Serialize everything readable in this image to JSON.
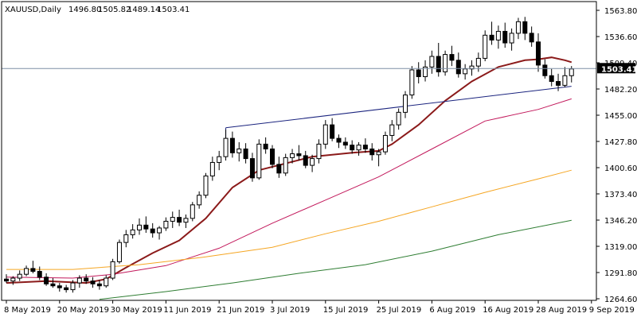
{
  "header": {
    "symbol": "XAUUSD,Daily",
    "open": "1496.80",
    "high": "1505.82",
    "low": "1489.14",
    "close": "1503.41"
  },
  "colors": {
    "background": "#ffffff",
    "axis": "#000000",
    "candle": "#000000",
    "price_line": "#7f8fa6",
    "price_label_bg": "#000000",
    "price_label_text": "#ffffff",
    "trendline": "#1a237e",
    "ma_dark_red": "#8b1a1a",
    "ma_crimson": "#c2185b",
    "ma_orange": "#f5a623",
    "ma_green": "#2e7d32"
  },
  "chart_data": {
    "type": "candlestick",
    "title": "XAUUSD,Daily",
    "ylim": [
      1264.6,
      1563.8
    ],
    "y_ticks": [
      "1563.80",
      "1536.60",
      "1509.40",
      "1482.20",
      "1455.00",
      "1427.80",
      "1400.60",
      "1373.40",
      "1346.20",
      "1319.00",
      "1291.80",
      "1264.60"
    ],
    "x_ticks": [
      "8 May 2019",
      "20 May 2019",
      "30 May 2019",
      "11 Jun 2019",
      "21 Jun 2019",
      "3 Jul 2019",
      "15 Jul 2019",
      "25 Jul 2019",
      "6 Aug 2019",
      "16 Aug 2019",
      "28 Aug 2019",
      "9 Sep 2019"
    ],
    "x_tick_bars": [
      0,
      8,
      16,
      24,
      32,
      40,
      48,
      56,
      64,
      72,
      80,
      88
    ],
    "current_price": "1503.41",
    "candles": [
      [
        1285,
        1290,
        1281,
        1283
      ],
      [
        1283,
        1288,
        1279,
        1286
      ],
      [
        1286,
        1294,
        1283,
        1290
      ],
      [
        1290,
        1299,
        1288,
        1296
      ],
      [
        1296,
        1304,
        1291,
        1293
      ],
      [
        1293,
        1298,
        1284,
        1287
      ],
      [
        1287,
        1291,
        1278,
        1280
      ],
      [
        1280,
        1286,
        1276,
        1278
      ],
      [
        1278,
        1281,
        1272,
        1276
      ],
      [
        1276,
        1279,
        1271,
        1274
      ],
      [
        1274,
        1284,
        1271,
        1281
      ],
      [
        1281,
        1289,
        1276,
        1286
      ],
      [
        1286,
        1290,
        1280,
        1283
      ],
      [
        1283,
        1287,
        1276,
        1280
      ],
      [
        1280,
        1284,
        1274,
        1278
      ],
      [
        1278,
        1289,
        1276,
        1286
      ],
      [
        1286,
        1306,
        1284,
        1303
      ],
      [
        1303,
        1326,
        1301,
        1323
      ],
      [
        1323,
        1336,
        1318,
        1331
      ],
      [
        1331,
        1342,
        1327,
        1336
      ],
      [
        1336,
        1348,
        1331,
        1341
      ],
      [
        1341,
        1350,
        1333,
        1337
      ],
      [
        1337,
        1343,
        1328,
        1333
      ],
      [
        1333,
        1340,
        1326,
        1338
      ],
      [
        1338,
        1349,
        1335,
        1345
      ],
      [
        1345,
        1355,
        1338,
        1349
      ],
      [
        1349,
        1357,
        1340,
        1344
      ],
      [
        1344,
        1352,
        1338,
        1348
      ],
      [
        1348,
        1365,
        1345,
        1362
      ],
      [
        1362,
        1376,
        1358,
        1372
      ],
      [
        1372,
        1395,
        1369,
        1392
      ],
      [
        1392,
        1412,
        1387,
        1406
      ],
      [
        1406,
        1418,
        1398,
        1412
      ],
      [
        1412,
        1440,
        1408,
        1431
      ],
      [
        1431,
        1438,
        1411,
        1416
      ],
      [
        1416,
        1427,
        1407,
        1420
      ],
      [
        1420,
        1426,
        1405,
        1410
      ],
      [
        1410,
        1416,
        1386,
        1390
      ],
      [
        1390,
        1430,
        1388,
        1425
      ],
      [
        1425,
        1432,
        1415,
        1420
      ],
      [
        1420,
        1424,
        1400,
        1404
      ],
      [
        1404,
        1412,
        1390,
        1395
      ],
      [
        1395,
        1415,
        1392,
        1411
      ],
      [
        1411,
        1420,
        1405,
        1415
      ],
      [
        1415,
        1424,
        1408,
        1413
      ],
      [
        1413,
        1418,
        1400,
        1403
      ],
      [
        1403,
        1414,
        1396,
        1410
      ],
      [
        1410,
        1430,
        1405,
        1425
      ],
      [
        1425,
        1450,
        1420,
        1445
      ],
      [
        1445,
        1452,
        1428,
        1431
      ],
      [
        1431,
        1435,
        1421,
        1427
      ],
      [
        1427,
        1432,
        1420,
        1424
      ],
      [
        1424,
        1429,
        1415,
        1419
      ],
      [
        1419,
        1427,
        1413,
        1424
      ],
      [
        1424,
        1431,
        1416,
        1420
      ],
      [
        1420,
        1426,
        1408,
        1414
      ],
      [
        1414,
        1420,
        1402,
        1417
      ],
      [
        1417,
        1438,
        1414,
        1434
      ],
      [
        1434,
        1450,
        1428,
        1445
      ],
      [
        1445,
        1462,
        1440,
        1458
      ],
      [
        1458,
        1480,
        1452,
        1476
      ],
      [
        1476,
        1506,
        1472,
        1502
      ],
      [
        1502,
        1510,
        1488,
        1495
      ],
      [
        1495,
        1512,
        1490,
        1505
      ],
      [
        1505,
        1522,
        1498,
        1516
      ],
      [
        1516,
        1530,
        1495,
        1500
      ],
      [
        1500,
        1522,
        1496,
        1518
      ],
      [
        1518,
        1527,
        1506,
        1512
      ],
      [
        1512,
        1520,
        1494,
        1498
      ],
      [
        1498,
        1508,
        1492,
        1503
      ],
      [
        1503,
        1512,
        1496,
        1506
      ],
      [
        1506,
        1520,
        1500,
        1514
      ],
      [
        1514,
        1543,
        1511,
        1538
      ],
      [
        1538,
        1552,
        1528,
        1533
      ],
      [
        1533,
        1548,
        1524,
        1542
      ],
      [
        1542,
        1551,
        1525,
        1530
      ],
      [
        1530,
        1545,
        1522,
        1540
      ],
      [
        1540,
        1556,
        1534,
        1552
      ],
      [
        1552,
        1557,
        1533,
        1540
      ],
      [
        1540,
        1547,
        1526,
        1531
      ],
      [
        1531,
        1540,
        1500,
        1507
      ],
      [
        1507,
        1513,
        1493,
        1496
      ],
      [
        1496,
        1503,
        1485,
        1490
      ],
      [
        1490,
        1498,
        1480,
        1486
      ],
      [
        1486,
        1505,
        1484,
        1496
      ],
      [
        1496,
        1506,
        1489,
        1503
      ]
    ],
    "series": [
      {
        "color": "#8b1a1a",
        "width": 2,
        "x": [
          0,
          6,
          12,
          15,
          18,
          22,
          26,
          30,
          34,
          38,
          42,
          46,
          52,
          56,
          58,
          62,
          66,
          70,
          74,
          78,
          80,
          82,
          84,
          85
        ],
        "values": [
          1281,
          1283,
          1281,
          1285,
          1297,
          1312,
          1325,
          1348,
          1380,
          1398,
          1405,
          1412,
          1416,
          1418,
          1425,
          1445,
          1470,
          1490,
          1505,
          1512,
          1513,
          1515,
          1512,
          1510
        ]
      },
      {
        "color": "#c2185b",
        "width": 1,
        "x": [
          0,
          10,
          16,
          24,
          32,
          40,
          48,
          56,
          64,
          72,
          80,
          85
        ],
        "values": [
          1287,
          1286,
          1290,
          1299,
          1317,
          1343,
          1367,
          1391,
          1420,
          1449,
          1461,
          1472
        ]
      },
      {
        "color": "#f5a623",
        "width": 1,
        "x": [
          0,
          10,
          20,
          30,
          40,
          48,
          56,
          64,
          72,
          80,
          85
        ],
        "values": [
          1295,
          1295,
          1300,
          1308,
          1318,
          1332,
          1345,
          1360,
          1375,
          1389,
          1398
        ]
      },
      {
        "color": "#2e7d32",
        "width": 1,
        "x": [
          14,
          24,
          34,
          44,
          54,
          64,
          74,
          85
        ],
        "values": [
          1264,
          1272,
          1281,
          1291,
          1300,
          1314,
          1331,
          1346
        ]
      }
    ],
    "trendline": {
      "x": [
        33,
        85
      ],
      "values": [
        1442,
        1485
      ]
    }
  }
}
